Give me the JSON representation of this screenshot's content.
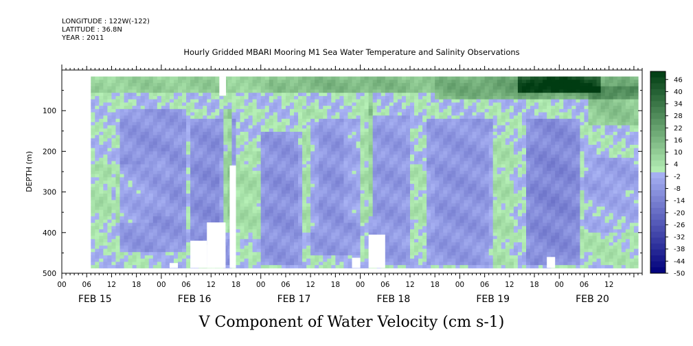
{
  "header": {
    "longitude": "LONGITUDE : 122W(-122)",
    "latitude": "LATITUDE : 36.8N",
    "year": "YEAR : 2011"
  },
  "title": "Hourly Gridded MBARI Mooring M1 Sea Water Temperature and Salinity Observations",
  "variable_title": "V Component of Water Velocity (cm s-1)",
  "chart_data": {
    "type": "heatmap",
    "title": "Hourly Gridded MBARI Mooring M1 Sea Water Temperature and Salinity Observations",
    "xlabel": "",
    "ylabel": "DEPTH (m)",
    "ylim": [
      500,
      0
    ],
    "y_ticks": [
      {
        "value": 100,
        "label": "100"
      },
      {
        "value": 200,
        "label": "200"
      },
      {
        "value": 300,
        "label": "300"
      },
      {
        "value": 400,
        "label": "400"
      },
      {
        "value": 500,
        "label": "500"
      }
    ],
    "x_range_hours": [
      0,
      140
    ],
    "x_hour_labels": [
      "00",
      "06",
      "12",
      "18",
      "00",
      "06",
      "12",
      "18",
      "00",
      "06",
      "12",
      "18",
      "00",
      "06",
      "12",
      "18",
      "00",
      "06",
      "12",
      "18",
      "00",
      "06",
      "12"
    ],
    "x_day_labels": [
      "FEB 15",
      "FEB 16",
      "FEB 17",
      "FEB 18",
      "FEB 19",
      "FEB 20"
    ],
    "data_extent": {
      "hour_start": 7,
      "hour_end": 139,
      "depth_top": 16,
      "depth_bottom": 487
    },
    "colorbar": {
      "min": -50,
      "max": 50,
      "labels": [
        "46",
        "40",
        "34",
        "28",
        "22",
        "16",
        "10",
        "4",
        "-2",
        "-8",
        "-14",
        "-20",
        "-26",
        "-32",
        "-38",
        "-44",
        "-50"
      ],
      "low_color": "#00007a",
      "mid_low_color": "#aab4f5",
      "mid_high_color": "#b6f0b6",
      "high_color": "#003c12"
    },
    "anomalies": [
      {
        "hour_start": 14,
        "hour_end": 30,
        "depth_start": 100,
        "depth_end": 450,
        "value": -10
      },
      {
        "hour_start": 31,
        "hour_end": 42,
        "depth_start": 120,
        "depth_end": 480,
        "value": -11
      },
      {
        "hour_start": 48,
        "hour_end": 58,
        "depth_start": 150,
        "depth_end": 480,
        "value": -10
      },
      {
        "hour_start": 60,
        "hour_end": 72,
        "depth_start": 120,
        "depth_end": 460,
        "value": -9
      },
      {
        "hour_start": 74,
        "hour_end": 84,
        "depth_start": 110,
        "depth_end": 480,
        "value": -8
      },
      {
        "hour_start": 88,
        "hour_end": 104,
        "depth_start": 120,
        "depth_end": 480,
        "value": -9
      },
      {
        "hour_start": 112,
        "hour_end": 125,
        "depth_start": 120,
        "depth_end": 480,
        "value": -13
      },
      {
        "hour_start": 126,
        "hour_end": 139,
        "depth_start": 220,
        "depth_end": 400,
        "value": -6
      },
      {
        "hour_start": 7,
        "hour_end": 12,
        "depth_start": 230,
        "depth_end": 390,
        "value": 4
      },
      {
        "hour_start": 13,
        "hour_end": 22,
        "depth_start": 230,
        "depth_end": 380,
        "value": 5
      },
      {
        "hour_start": 22,
        "hour_end": 26,
        "depth_start": 200,
        "depth_end": 360,
        "value": 3
      },
      {
        "hour_start": 38,
        "hour_end": 48,
        "depth_start": 200,
        "depth_end": 420,
        "value": 5
      },
      {
        "hour_start": 57,
        "hour_end": 62,
        "depth_start": 100,
        "depth_end": 400,
        "value": 4
      },
      {
        "hour_start": 68,
        "hour_end": 75,
        "depth_start": 100,
        "depth_end": 380,
        "value": 4
      },
      {
        "hour_start": 84,
        "hour_end": 90,
        "depth_start": 230,
        "depth_end": 420,
        "value": 3
      },
      {
        "hour_start": 103,
        "hour_end": 109,
        "depth_start": 150,
        "depth_end": 480,
        "value": 4
      },
      {
        "hour_start": 125,
        "hour_end": 139,
        "depth_start": 300,
        "depth_end": 480,
        "value": 3
      },
      {
        "hour_start": 90,
        "hour_end": 139,
        "depth_start": 16,
        "depth_end": 70,
        "value": 22
      },
      {
        "hour_start": 110,
        "hour_end": 130,
        "depth_start": 16,
        "depth_end": 60,
        "value": 32
      },
      {
        "hour_start": 127,
        "hour_end": 139,
        "depth_start": 40,
        "depth_end": 140,
        "value": 12
      },
      {
        "hour_start": 7,
        "hour_end": 50,
        "depth_start": 16,
        "depth_end": 60,
        "value": 10
      },
      {
        "hour_start": 50,
        "hour_end": 90,
        "depth_start": 16,
        "depth_end": 60,
        "value": 16
      },
      {
        "hour_start": 39.5,
        "hour_end": 41,
        "depth_start": 100,
        "depth_end": 400,
        "value": 16
      },
      {
        "hour_start": 74.5,
        "hour_end": 75.5,
        "depth_start": 60,
        "depth_end": 360,
        "value": 14
      }
    ],
    "gaps": [
      {
        "hour_start": 38,
        "hour_end": 39.6,
        "depth_start": 16,
        "depth_end": 63
      },
      {
        "hour_start": 40.5,
        "hour_end": 42,
        "depth_start": 235,
        "depth_end": 487
      },
      {
        "hour_start": 35,
        "hour_end": 39.5,
        "depth_start": 375,
        "depth_end": 487
      },
      {
        "hour_start": 35,
        "hour_end": 39.5,
        "depth_start": 430,
        "depth_end": 487
      },
      {
        "hour_start": 31,
        "hour_end": 35,
        "depth_start": 420,
        "depth_end": 487
      },
      {
        "hour_start": 26,
        "hour_end": 28,
        "depth_start": 475,
        "depth_end": 487
      },
      {
        "hour_start": 74,
        "hour_end": 78,
        "depth_start": 405,
        "depth_end": 487
      },
      {
        "hour_start": 70,
        "hour_end": 72,
        "depth_start": 462,
        "depth_end": 487
      },
      {
        "hour_start": 117,
        "hour_end": 119,
        "depth_start": 460,
        "depth_end": 487
      }
    ]
  }
}
